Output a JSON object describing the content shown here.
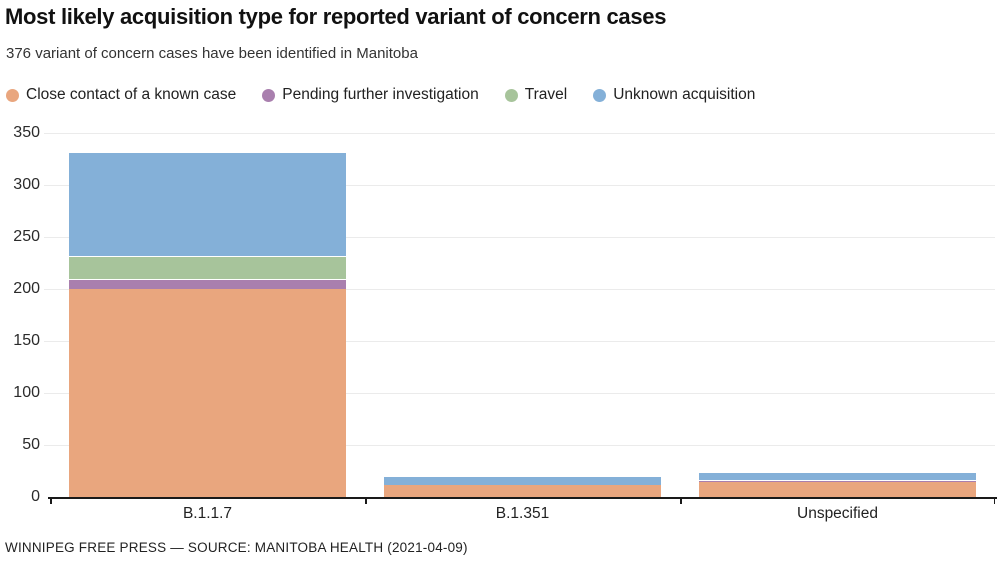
{
  "header": {
    "title": "Most likely acquisition type for reported variant of concern cases",
    "subtitle": "376 variant of concern cases have been identified in Manitoba"
  },
  "footer": {
    "credit": "WINNIPEG FREE PRESS — SOURCE: MANITOBA HEALTH (2021-04-09)"
  },
  "chart_data": {
    "type": "bar",
    "stacked": true,
    "orientation": "vertical",
    "title": "Most likely acquisition type for reported variant of concern cases",
    "subtitle": "376 variant of concern cases have been identified in Manitoba",
    "categories": [
      "B.1.1.7",
      "B.1.351",
      "Unspecified"
    ],
    "series": [
      {
        "name": "Close contact of a known case",
        "color": "#e9a67e",
        "values": [
          200,
          12,
          14
        ]
      },
      {
        "name": "Pending further investigation",
        "color": "#a97fae",
        "values": [
          10,
          0,
          2
        ]
      },
      {
        "name": "Travel",
        "color": "#a7c49b",
        "values": [
          22,
          0,
          0
        ]
      },
      {
        "name": "Unknown acquisition",
        "color": "#84b0d8",
        "values": [
          100,
          8,
          8
        ]
      }
    ],
    "category_totals": [
      332,
      20,
      24
    ],
    "grand_total": 376,
    "xlabel": "",
    "ylabel": "",
    "ylim": [
      0,
      350
    ],
    "yticks": [
      0,
      50,
      100,
      150,
      200,
      250,
      300,
      350
    ],
    "grid": true,
    "legend_position": "top"
  },
  "style": {
    "grid_color": "#ebebeb",
    "axis_color": "#1a1a1a",
    "segment_stroke": "#ffffff"
  }
}
